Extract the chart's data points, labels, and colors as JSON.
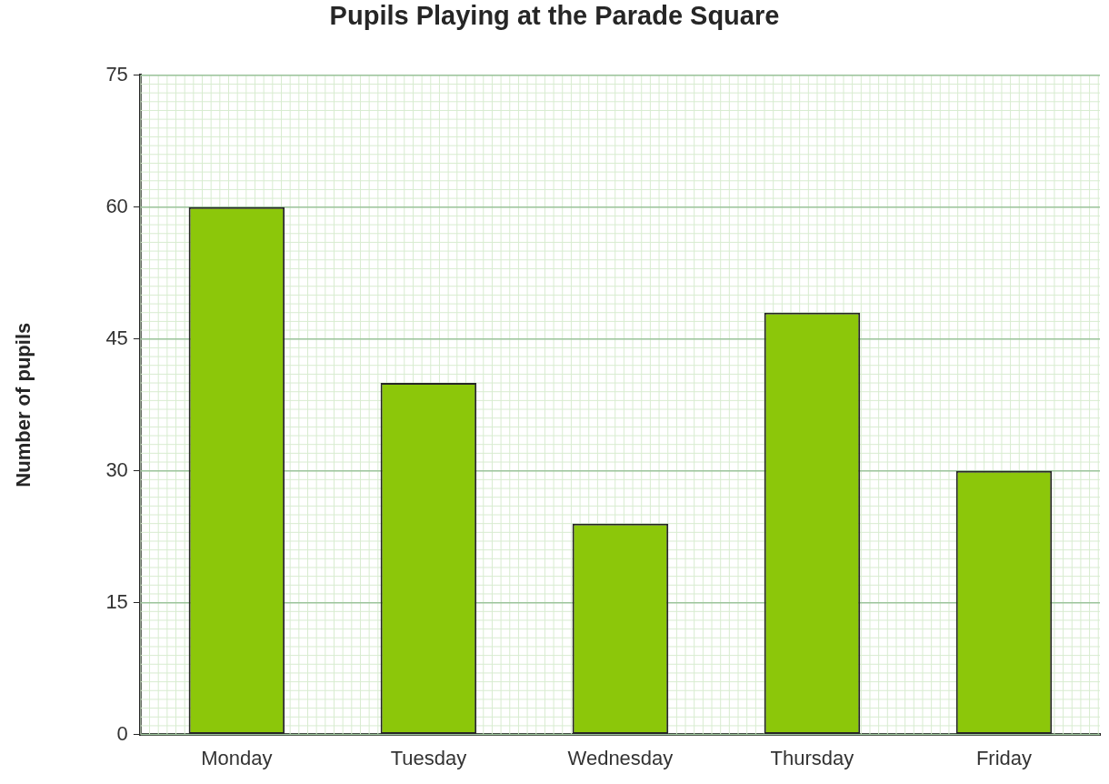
{
  "chart_data": {
    "type": "bar",
    "title": "Pupils Playing at the Parade Square",
    "ylabel": "Number of pupils",
    "categories": [
      "Monday",
      "Tuesday",
      "Wednesday",
      "Thursday",
      "Friday"
    ],
    "values": [
      60,
      40,
      24,
      48,
      30
    ],
    "color": "#8cc70a",
    "ylim": [
      0,
      75
    ],
    "yticks": [
      0,
      15,
      30,
      45,
      60,
      75
    ],
    "grid": true,
    "legend": false
  }
}
